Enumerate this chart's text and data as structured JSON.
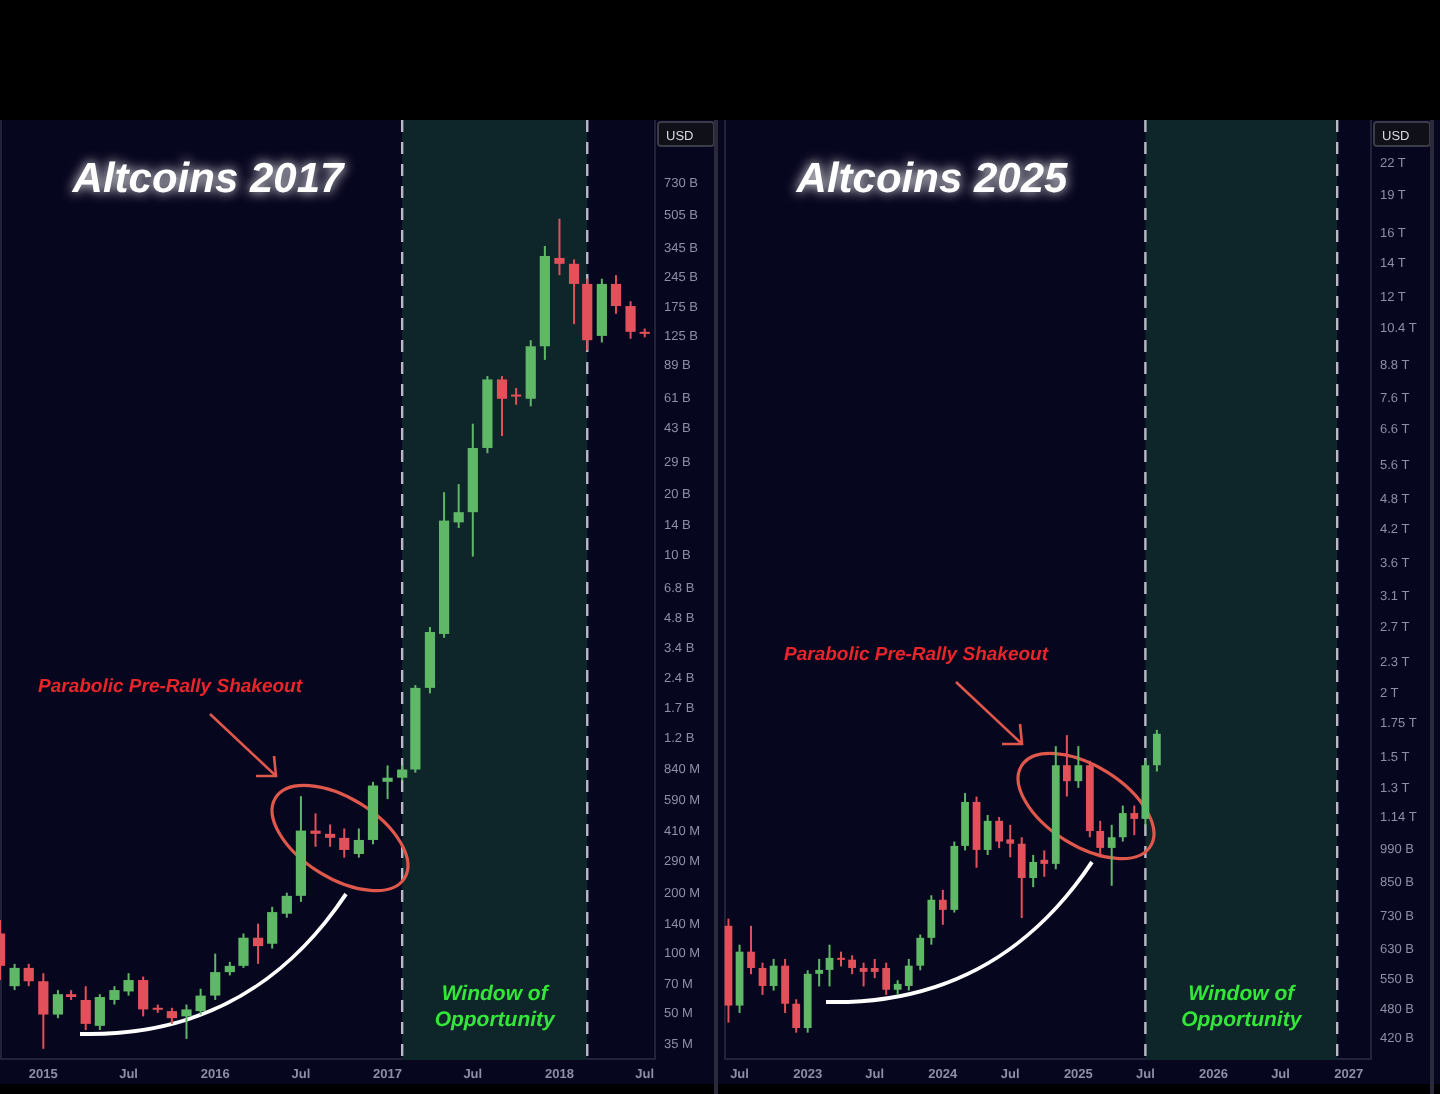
{
  "chart_data": [
    {
      "type": "candlestick",
      "title": "Altcoins 2017",
      "ylabel": "USD",
      "log": true,
      "x": [
        "2014-10",
        "2014-11",
        "2014-12",
        "2015-01",
        "2015-02",
        "2015-03",
        "2015-04",
        "2015-05",
        "2015-06",
        "2015-07",
        "2015-08",
        "2015-09",
        "2015-10",
        "2015-11",
        "2015-12",
        "2016-01",
        "2016-02",
        "2016-03",
        "2016-04",
        "2016-05",
        "2016-06",
        "2016-07",
        "2016-08",
        "2016-09",
        "2016-10",
        "2016-11",
        "2016-12",
        "2017-01",
        "2017-02",
        "2017-03",
        "2017-04",
        "2017-05",
        "2017-06",
        "2017-07",
        "2017-08",
        "2017-09",
        "2017-10",
        "2017-11",
        "2017-12",
        "2018-01",
        "2018-02",
        "2018-03",
        "2018-04",
        "2018-05",
        "2018-06",
        "2018-07"
      ],
      "ohlc": [
        [
          125000000.0,
          146000000.0,
          73000000.0,
          86000000.0
        ],
        [
          68000000.0,
          88000000.0,
          65000000.0,
          84000000.0
        ],
        [
          84000000.0,
          88000000.0,
          68000000.0,
          72000000.0
        ],
        [
          72000000.0,
          79000000.0,
          33000000.0,
          49000000.0
        ],
        [
          49000000.0,
          65000000.0,
          47000000.0,
          62000000.0
        ],
        [
          62000000.0,
          65000000.0,
          58000000.0,
          60000000.0
        ],
        [
          58000000.0,
          68000000.0,
          41000000.0,
          44000000.0
        ],
        [
          43000000.0,
          62000000.0,
          41000000.0,
          60000000.0
        ],
        [
          58000000.0,
          68000000.0,
          55000000.0,
          65000000.0
        ],
        [
          64000000.0,
          79000000.0,
          61000000.0,
          73000000.0
        ],
        [
          73000000.0,
          76000000.0,
          48000000.0,
          52000000.0
        ],
        [
          53000000.0,
          55000000.0,
          50000000.0,
          52000000.0
        ],
        [
          51000000.0,
          53000000.0,
          44000000.0,
          47000000.0
        ],
        [
          48000000.0,
          55000000.0,
          37000000.0,
          52000000.0
        ],
        [
          51000000.0,
          66000000.0,
          49000000.0,
          61000000.0
        ],
        [
          61000000.0,
          99000000.0,
          58000000.0,
          80000000.0
        ],
        [
          80000000.0,
          90000000.0,
          77000000.0,
          86000000.0
        ],
        [
          86000000.0,
          125000000.0,
          84000000.0,
          119000000.0
        ],
        [
          119000000.0,
          140000000.0,
          88000000.0,
          108000000.0
        ],
        [
          111000000.0,
          170000000.0,
          105000000.0,
          160000000.0
        ],
        [
          157000000.0,
          200000000.0,
          150000000.0,
          193000000.0
        ],
        [
          193000000.0,
          610000000.0,
          180000000.0,
          410000000.0
        ],
        [
          410000000.0,
          500000000.0,
          340000000.0,
          395000000.0
        ],
        [
          395000000.0,
          440000000.0,
          340000000.0,
          377000000.0
        ],
        [
          377000000.0,
          420000000.0,
          300000000.0,
          328000000.0
        ],
        [
          313000000.0,
          420000000.0,
          300000000.0,
          368000000.0
        ],
        [
          368000000.0,
          720000000.0,
          350000000.0,
          690000000.0
        ],
        [
          720000000.0,
          870000000.0,
          590000000.0,
          755000000.0
        ],
        [
          755000000.0,
          870000000.0,
          730000000.0,
          830000000.0
        ],
        [
          830000000.0,
          2200000000.0,
          800000000.0,
          2130000000.0
        ],
        [
          2130000000.0,
          4300000000.0,
          2000000000.0,
          4060000000.0
        ],
        [
          3970000000.0,
          20400000000.0,
          3800000000.0,
          14700000000.0
        ],
        [
          14400000000.0,
          22400000000.0,
          13500000000.0,
          16200000000.0
        ],
        [
          16200000000.0,
          45000000000.0,
          9700000000.0,
          34000000000.0
        ],
        [
          34000000000.0,
          78000000000.0,
          32000000000.0,
          75000000000.0
        ],
        [
          75000000000.0,
          78000000000.0,
          39000000000.0,
          60000000000.0
        ],
        [
          63000000000.0,
          68000000000.0,
          56000000000.0,
          62000000000.0
        ],
        [
          60000000000.0,
          118000000000.0,
          55000000000.0,
          110000000000.0
        ],
        [
          110000000000.0,
          350000000000.0,
          94000000000.0,
          312000000000.0
        ],
        [
          305000000000.0,
          480000000000.0,
          250000000000.0,
          285000000000.0
        ],
        [
          285000000000.0,
          300000000000.0,
          142000000000.0,
          226000000000.0
        ],
        [
          226000000000.0,
          240000000000.0,
          105000000000.0,
          118000000000.0
        ],
        [
          124000000000.0,
          240000000000.0,
          115000000000.0,
          226000000000.0
        ],
        [
          226000000000.0,
          250000000000.0,
          160000000000.0,
          175000000000.0
        ],
        [
          175000000000.0,
          185000000000.0,
          120000000000.0,
          130000000000.0
        ],
        [
          130000000000.0,
          135000000000.0,
          122000000000.0,
          127000000000.0
        ]
      ],
      "xlim": [
        "2014-10-01",
        "2018-07-25"
      ],
      "xticks": [
        {
          "value": "2015-01-01",
          "label": "2015"
        },
        {
          "value": "2015-07-01",
          "label": "Jul"
        },
        {
          "value": "2016-01-01",
          "label": "2016"
        },
        {
          "value": "2016-07-01",
          "label": "Jul"
        },
        {
          "value": "2017-01-01",
          "label": "2017"
        },
        {
          "value": "2017-07-01",
          "label": "Jul"
        },
        {
          "value": "2018-01-01",
          "label": "2018"
        },
        {
          "value": "2018-07-01",
          "label": "Jul"
        }
      ],
      "ylim": [
        29000000.0,
        1500000000000.0
      ],
      "yticks": [
        {
          "value": 35000000.0,
          "label": "35 M"
        },
        {
          "value": 50000000.0,
          "label": "50 M"
        },
        {
          "value": 70000000.0,
          "label": "70 M"
        },
        {
          "value": 100000000.0,
          "label": "100 M"
        },
        {
          "value": 140000000.0,
          "label": "140 M"
        },
        {
          "value": 200000000.0,
          "label": "200 M"
        },
        {
          "value": 290000000.0,
          "label": "290 M"
        },
        {
          "value": 410000000.0,
          "label": "410 M"
        },
        {
          "value": 590000000.0,
          "label": "590 M"
        },
        {
          "value": 840000000.0,
          "label": "840 M"
        },
        {
          "value": 1200000000.0,
          "label": "1.2 B"
        },
        {
          "value": 1700000000.0,
          "label": "1.7 B"
        },
        {
          "value": 2400000000.0,
          "label": "2.4 B"
        },
        {
          "value": 3400000000.0,
          "label": "3.4 B"
        },
        {
          "value": 4800000000.0,
          "label": "4.8 B"
        },
        {
          "value": 6800000000.0,
          "label": "6.8 B"
        },
        {
          "value": 10000000000.0,
          "label": "10 B"
        },
        {
          "value": 14000000000.0,
          "label": "14 B"
        },
        {
          "value": 20000000000.0,
          "label": "20 B"
        },
        {
          "value": 29000000000.0,
          "label": "29 B"
        },
        {
          "value": 43000000000.0,
          "label": "43 B"
        },
        {
          "value": 61000000000.0,
          "label": "61 B"
        },
        {
          "value": 89000000000.0,
          "label": "89 B"
        },
        {
          "value": 125000000000.0,
          "label": "125 B"
        },
        {
          "value": 175000000000.0,
          "label": "175 B"
        },
        {
          "value": 245000000000.0,
          "label": "245 B"
        },
        {
          "value": 345000000000.0,
          "label": "345 B"
        },
        {
          "value": 505000000000.0,
          "label": "505 B"
        },
        {
          "value": 730000000000.0,
          "label": "730 B"
        }
      ],
      "bands": [
        {
          "axis": "x",
          "from": "2017-02",
          "to": "2018-03",
          "label": "Window of Opportunity",
          "color": "#0e2629"
        }
      ],
      "ref_lines": [
        {
          "axis": "x",
          "value": "2017-02",
          "line_style": "dashed",
          "color": "#b9b9c6"
        },
        {
          "axis": "x",
          "value": "2018-03",
          "line_style": "dashed",
          "color": "#b9b9c6"
        }
      ],
      "annotations": [
        "Parabolic Pre-Rally Shakeout"
      ]
    },
    {
      "type": "candlestick",
      "title": "Altcoins 2025",
      "ylabel": "USD",
      "log": true,
      "x": [
        "2022-06",
        "2022-07",
        "2022-08",
        "2022-09",
        "2022-10",
        "2022-11",
        "2022-12",
        "2023-01",
        "2023-02",
        "2023-03",
        "2023-04",
        "2023-05",
        "2023-06",
        "2023-07",
        "2023-08",
        "2023-09",
        "2023-10",
        "2023-11",
        "2023-12",
        "2024-01",
        "2024-02",
        "2024-03",
        "2024-04",
        "2024-05",
        "2024-06",
        "2024-07",
        "2024-08",
        "2024-09",
        "2024-10",
        "2024-11",
        "2024-12",
        "2025-01",
        "2025-02",
        "2025-03",
        "2025-04",
        "2025-05",
        "2025-06",
        "2025-07",
        "2025-08"
      ],
      "ohlc": [
        [
          697000000000.0,
          720000000000.0,
          450000000000.0,
          486000000000.0
        ],
        [
          486000000000.0,
          640000000000.0,
          470000000000.0,
          620000000000.0
        ],
        [
          620000000000.0,
          697000000000.0,
          560000000000.0,
          576000000000.0
        ],
        [
          576000000000.0,
          590000000000.0,
          510000000000.0,
          531000000000.0
        ],
        [
          531000000000.0,
          600000000000.0,
          520000000000.0,
          582000000000.0
        ],
        [
          582000000000.0,
          600000000000.0,
          470000000000.0,
          490000000000.0
        ],
        [
          490000000000.0,
          500000000000.0,
          430000000000.0,
          439000000000.0
        ],
        [
          439000000000.0,
          570000000000.0,
          430000000000.0,
          561000000000.0
        ],
        [
          561000000000.0,
          600000000000.0,
          530000000000.0,
          571000000000.0
        ],
        [
          571000000000.0,
          640000000000.0,
          530000000000.0,
          603000000000.0
        ],
        [
          603000000000.0,
          620000000000.0,
          580000000000.0,
          598000000000.0
        ],
        [
          598000000000.0,
          610000000000.0,
          560000000000.0,
          576000000000.0
        ],
        [
          576000000000.0,
          590000000000.0,
          530000000000.0,
          566000000000.0
        ],
        [
          576000000000.0,
          600000000000.0,
          550000000000.0,
          566000000000.0
        ],
        [
          576000000000.0,
          590000000000.0,
          510000000000.0,
          522000000000.0
        ],
        [
          522000000000.0,
          545000000000.0,
          510000000000.0,
          536000000000.0
        ],
        [
          531000000000.0,
          600000000000.0,
          520000000000.0,
          582000000000.0
        ],
        [
          582000000000.0,
          670000000000.0,
          570000000000.0,
          660000000000.0
        ],
        [
          660000000000.0,
          800000000000.0,
          640000000000.0,
          784000000000.0
        ],
        [
          784000000000.0,
          820000000000.0,
          700000000000.0,
          749000000000.0
        ],
        [
          749000000000.0,
          1020000000000.0,
          740000000000.0,
          1000000000000.0
        ],
        [
          1000000000000.0,
          1270000000000.0,
          980000000000.0,
          1220000000000.0
        ],
        [
          1220000000000.0,
          1250000000000.0,
          906000000000.0,
          982000000000.0
        ],
        [
          982000000000.0,
          1150000000000.0,
          960000000000.0,
          1120000000000.0
        ],
        [
          1120000000000.0,
          1140000000000.0,
          990000000000.0,
          1020000000000.0
        ],
        [
          1030000000000.0,
          1100000000000.0,
          950000000000.0,
          1010000000000.0
        ],
        [
          1010000000000.0,
          1040000000000.0,
          722000000000.0,
          865000000000.0
        ],
        [
          865000000000.0,
          960000000000.0,
          830000000000.0,
          930000000000.0
        ],
        [
          939000000000.0,
          980000000000.0,
          870000000000.0,
          922000000000.0
        ],
        [
          922000000000.0,
          1570000000000.0,
          900000000000.0,
          1440000000000.0
        ],
        [
          1440000000000.0,
          1650000000000.0,
          1250000000000.0,
          1340000000000.0
        ],
        [
          1340000000000.0,
          1570000000000.0,
          1300000000000.0,
          1440000000000.0
        ],
        [
          1440000000000.0,
          1470000000000.0,
          1040000000000.0,
          1070000000000.0
        ],
        [
          1070000000000.0,
          1120000000000.0,
          950000000000.0,
          991000000000.0
        ],
        [
          991000000000.0,
          1100000000000.0,
          835000000000.0,
          1040000000000.0
        ],
        [
          1040000000000.0,
          1200000000000.0,
          1020000000000.0,
          1160000000000.0
        ],
        [
          1160000000000.0,
          1200000000000.0,
          1050000000000.0,
          1130000000000.0
        ],
        [
          1130000000000.0,
          1470000000000.0,
          1100000000000.0,
          1440000000000.0
        ],
        [
          1440000000000.0,
          1690000000000.0,
          1400000000000.0,
          1660000000000.0
        ]
      ],
      "xlim": [
        "2022-05-20",
        "2027-03-05"
      ],
      "xticks": [
        {
          "value": "2022-07-01",
          "label": "Jul"
        },
        {
          "value": "2023-01-01",
          "label": "2023"
        },
        {
          "value": "2023-07-01",
          "label": "Jul"
        },
        {
          "value": "2024-01-01",
          "label": "2024"
        },
        {
          "value": "2024-07-01",
          "label": "Jul"
        },
        {
          "value": "2025-01-01",
          "label": "2025"
        },
        {
          "value": "2025-07-01",
          "label": "Jul"
        },
        {
          "value": "2026-01-01",
          "label": "2026"
        },
        {
          "value": "2026-07-01",
          "label": "Jul"
        },
        {
          "value": "2027-01-01",
          "label": "2027"
        }
      ],
      "ylim": [
        380000000000.0,
        26600000000000.0
      ],
      "yticks": [
        {
          "value": 420000000000.0,
          "label": "420 B"
        },
        {
          "value": 480000000000.0,
          "label": "480 B"
        },
        {
          "value": 550000000000.0,
          "label": "550 B"
        },
        {
          "value": 630000000000.0,
          "label": "630 B"
        },
        {
          "value": 730000000000.0,
          "label": "730 B"
        },
        {
          "value": 850000000000.0,
          "label": "850 B"
        },
        {
          "value": 990000000000.0,
          "label": "990 B"
        },
        {
          "value": 1140000000000.0,
          "label": "1.14 T"
        },
        {
          "value": 1300000000000.0,
          "label": "1.3 T"
        },
        {
          "value": 1500000000000.0,
          "label": "1.5 T"
        },
        {
          "value": 1750000000000.0,
          "label": "1.75 T"
        },
        {
          "value": 2000000000000.0,
          "label": "2 T"
        },
        {
          "value": 2300000000000.0,
          "label": "2.3 T"
        },
        {
          "value": 2700000000000.0,
          "label": "2.7 T"
        },
        {
          "value": 3100000000000.0,
          "label": "3.1 T"
        },
        {
          "value": 3600000000000.0,
          "label": "3.6 T"
        },
        {
          "value": 4200000000000.0,
          "label": "4.2 T"
        },
        {
          "value": 4800000000000.0,
          "label": "4.8 T"
        },
        {
          "value": 5600000000000.0,
          "label": "5.6 T"
        },
        {
          "value": 6600000000000.0,
          "label": "6.6 T"
        },
        {
          "value": 7600000000000.0,
          "label": "7.6 T"
        },
        {
          "value": 8800000000000.0,
          "label": "8.8 T"
        },
        {
          "value": 10400000000000.0,
          "label": "10.4 T"
        },
        {
          "value": 12000000000000.0,
          "label": "12 T"
        },
        {
          "value": 14000000000000.0,
          "label": "14 T"
        },
        {
          "value": 16000000000000.0,
          "label": "16 T"
        },
        {
          "value": 19000000000000.0,
          "label": "19 T"
        },
        {
          "value": 22000000000000.0,
          "label": "22 T"
        }
      ],
      "bands": [
        {
          "axis": "x",
          "from": "2025-07",
          "to": "2026-12",
          "label": "Window of Opportunity",
          "color": "#0e2629"
        }
      ],
      "ref_lines": [
        {
          "axis": "x",
          "value": "2025-07",
          "line_style": "dashed",
          "color": "#b9b9c6"
        },
        {
          "axis": "x",
          "value": "2026-12",
          "line_style": "dashed",
          "color": "#b9b9c6"
        }
      ],
      "annotations": [
        "Parabolic Pre-Rally Shakeout"
      ]
    }
  ]
}
